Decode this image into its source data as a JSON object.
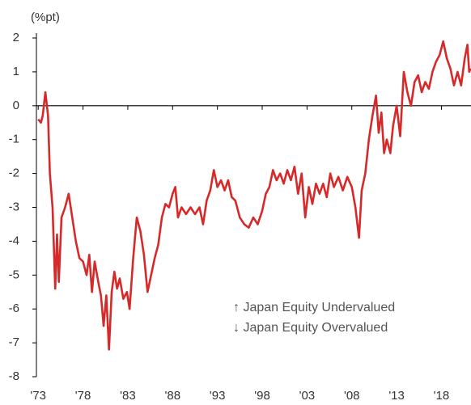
{
  "chart_data": {
    "type": "line",
    "y_unit_label": "(%pt)",
    "annotations": [
      "↑ Japan Equity Undervalued",
      "↓ Japan Equity Overvalued"
    ],
    "xlim": [
      1972.8,
      2021.3
    ],
    "xticks": [
      {
        "value": 1973,
        "label": "'73"
      },
      {
        "value": 1978,
        "label": "'78"
      },
      {
        "value": 1983,
        "label": "'83"
      },
      {
        "value": 1988,
        "label": "'88"
      },
      {
        "value": 1993,
        "label": "'93"
      },
      {
        "value": 1998,
        "label": "'98"
      },
      {
        "value": 2003,
        "label": "'03"
      },
      {
        "value": 2008,
        "label": "'08"
      },
      {
        "value": 2013,
        "label": "'13"
      },
      {
        "value": 2018,
        "label": "'18"
      }
    ],
    "ylim": [
      -8,
      2
    ],
    "yticks": [
      2,
      1,
      0,
      -1,
      -2,
      -3,
      -4,
      -5,
      -6,
      -7,
      -8
    ],
    "series": [
      {
        "color": "#d42a2a",
        "x": [
          1973.0,
          1973.3,
          1973.5,
          1973.8,
          1974.1,
          1974.3,
          1974.6,
          1974.9,
          1975.1,
          1975.3,
          1975.6,
          1976.0,
          1976.4,
          1976.8,
          1977.2,
          1977.6,
          1978.0,
          1978.4,
          1978.7,
          1979.0,
          1979.3,
          1979.7,
          1980.0,
          1980.3,
          1980.6,
          1980.9,
          1981.2,
          1981.5,
          1981.8,
          1982.1,
          1982.5,
          1982.9,
          1983.2,
          1983.6,
          1984.0,
          1984.4,
          1984.8,
          1985.2,
          1985.6,
          1986.0,
          1986.4,
          1986.8,
          1987.2,
          1987.6,
          1988.0,
          1988.3,
          1988.6,
          1989.0,
          1989.5,
          1990.0,
          1990.5,
          1991.0,
          1991.4,
          1991.8,
          1992.2,
          1992.6,
          1993.0,
          1993.4,
          1993.8,
          1994.2,
          1994.6,
          1995.0,
          1995.5,
          1996.0,
          1996.5,
          1997.0,
          1997.5,
          1998.0,
          1998.4,
          1998.8,
          1999.2,
          1999.6,
          2000.0,
          2000.4,
          2000.8,
          2001.2,
          2001.6,
          2002.0,
          2002.4,
          2002.8,
          2003.2,
          2003.6,
          2004.0,
          2004.4,
          2004.8,
          2005.2,
          2005.6,
          2006.0,
          2006.5,
          2007.0,
          2007.5,
          2008.0,
          2008.4,
          2008.8,
          2009.1,
          2009.5,
          2009.9,
          2010.3,
          2010.7,
          2011.0,
          2011.3,
          2011.6,
          2011.9,
          2012.3,
          2012.6,
          2013.0,
          2013.4,
          2013.8,
          2014.2,
          2014.6,
          2015.0,
          2015.4,
          2015.8,
          2016.2,
          2016.6,
          2017.0,
          2017.4,
          2017.8,
          2018.2,
          2018.6,
          2019.0,
          2019.4,
          2019.8,
          2020.2,
          2020.6,
          2020.9,
          2021.1,
          2021.25
        ],
        "values": [
          -0.4,
          -0.5,
          -0.3,
          0.4,
          -0.3,
          -2.0,
          -3.0,
          -5.4,
          -3.8,
          -5.2,
          -3.3,
          -3.0,
          -2.6,
          -3.3,
          -4.0,
          -4.5,
          -4.6,
          -5.0,
          -4.4,
          -5.5,
          -4.6,
          -5.2,
          -5.6,
          -6.5,
          -5.6,
          -7.2,
          -5.5,
          -4.9,
          -5.4,
          -5.1,
          -5.7,
          -5.5,
          -6.0,
          -4.5,
          -3.3,
          -3.7,
          -4.4,
          -5.5,
          -5.0,
          -4.5,
          -4.1,
          -3.3,
          -2.9,
          -3.0,
          -2.6,
          -2.4,
          -3.3,
          -3.0,
          -3.2,
          -3.0,
          -3.2,
          -3.0,
          -3.5,
          -2.8,
          -2.5,
          -1.9,
          -2.4,
          -2.2,
          -2.5,
          -2.2,
          -2.7,
          -2.8,
          -3.3,
          -3.5,
          -3.6,
          -3.3,
          -3.5,
          -3.1,
          -2.6,
          -2.4,
          -1.9,
          -2.2,
          -2.0,
          -2.3,
          -1.9,
          -2.2,
          -1.8,
          -2.6,
          -2.0,
          -3.3,
          -2.4,
          -2.9,
          -2.3,
          -2.6,
          -2.3,
          -2.7,
          -2.0,
          -2.4,
          -2.1,
          -2.5,
          -2.1,
          -2.4,
          -3.0,
          -3.9,
          -2.5,
          -2.0,
          -1.0,
          -0.3,
          0.3,
          -0.8,
          -0.2,
          -1.4,
          -1.0,
          -1.4,
          -0.6,
          0.0,
          -0.9,
          1.0,
          0.4,
          0.0,
          0.7,
          0.9,
          0.4,
          0.7,
          0.5,
          1.0,
          1.3,
          1.5,
          1.9,
          1.4,
          1.1,
          0.6,
          1.0,
          0.6,
          1.4,
          1.8,
          1.0,
          1.1
        ]
      }
    ]
  }
}
